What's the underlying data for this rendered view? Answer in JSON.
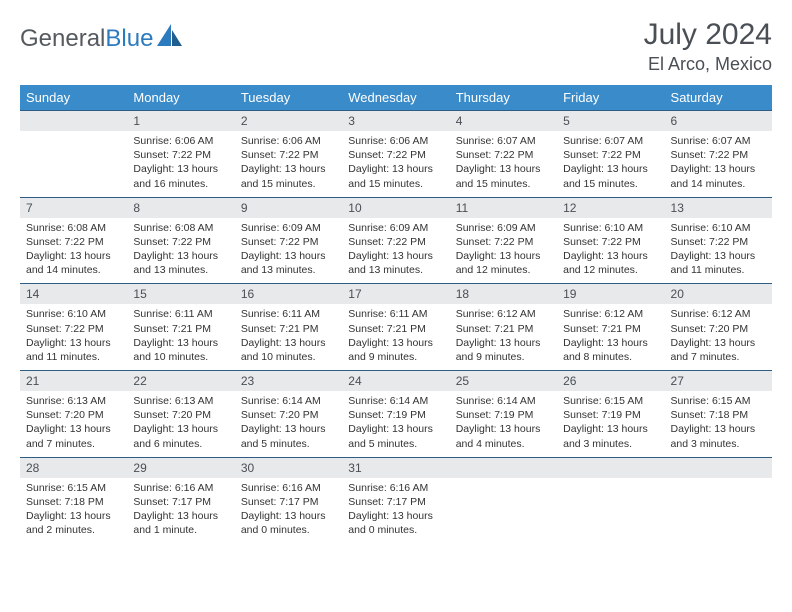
{
  "brand": {
    "part1": "General",
    "part2": "Blue"
  },
  "title": "July 2024",
  "location": "El Arco, Mexico",
  "colors": {
    "header_bg": "#3a8bc9",
    "header_text": "#ffffff",
    "daynum_bg": "#e7e9eb",
    "row_border": "#2e5c85",
    "body_text": "#333333",
    "title_text": "#4a4f55"
  },
  "weekdays": [
    "Sunday",
    "Monday",
    "Tuesday",
    "Wednesday",
    "Thursday",
    "Friday",
    "Saturday"
  ],
  "first_weekday_offset": 1,
  "days": [
    {
      "n": 1,
      "sr": "6:06 AM",
      "ss": "7:22 PM",
      "dl": "13 hours and 16 minutes."
    },
    {
      "n": 2,
      "sr": "6:06 AM",
      "ss": "7:22 PM",
      "dl": "13 hours and 15 minutes."
    },
    {
      "n": 3,
      "sr": "6:06 AM",
      "ss": "7:22 PM",
      "dl": "13 hours and 15 minutes."
    },
    {
      "n": 4,
      "sr": "6:07 AM",
      "ss": "7:22 PM",
      "dl": "13 hours and 15 minutes."
    },
    {
      "n": 5,
      "sr": "6:07 AM",
      "ss": "7:22 PM",
      "dl": "13 hours and 15 minutes."
    },
    {
      "n": 6,
      "sr": "6:07 AM",
      "ss": "7:22 PM",
      "dl": "13 hours and 14 minutes."
    },
    {
      "n": 7,
      "sr": "6:08 AM",
      "ss": "7:22 PM",
      "dl": "13 hours and 14 minutes."
    },
    {
      "n": 8,
      "sr": "6:08 AM",
      "ss": "7:22 PM",
      "dl": "13 hours and 13 minutes."
    },
    {
      "n": 9,
      "sr": "6:09 AM",
      "ss": "7:22 PM",
      "dl": "13 hours and 13 minutes."
    },
    {
      "n": 10,
      "sr": "6:09 AM",
      "ss": "7:22 PM",
      "dl": "13 hours and 13 minutes."
    },
    {
      "n": 11,
      "sr": "6:09 AM",
      "ss": "7:22 PM",
      "dl": "13 hours and 12 minutes."
    },
    {
      "n": 12,
      "sr": "6:10 AM",
      "ss": "7:22 PM",
      "dl": "13 hours and 12 minutes."
    },
    {
      "n": 13,
      "sr": "6:10 AM",
      "ss": "7:22 PM",
      "dl": "13 hours and 11 minutes."
    },
    {
      "n": 14,
      "sr": "6:10 AM",
      "ss": "7:22 PM",
      "dl": "13 hours and 11 minutes."
    },
    {
      "n": 15,
      "sr": "6:11 AM",
      "ss": "7:21 PM",
      "dl": "13 hours and 10 minutes."
    },
    {
      "n": 16,
      "sr": "6:11 AM",
      "ss": "7:21 PM",
      "dl": "13 hours and 10 minutes."
    },
    {
      "n": 17,
      "sr": "6:11 AM",
      "ss": "7:21 PM",
      "dl": "13 hours and 9 minutes."
    },
    {
      "n": 18,
      "sr": "6:12 AM",
      "ss": "7:21 PM",
      "dl": "13 hours and 9 minutes."
    },
    {
      "n": 19,
      "sr": "6:12 AM",
      "ss": "7:21 PM",
      "dl": "13 hours and 8 minutes."
    },
    {
      "n": 20,
      "sr": "6:12 AM",
      "ss": "7:20 PM",
      "dl": "13 hours and 7 minutes."
    },
    {
      "n": 21,
      "sr": "6:13 AM",
      "ss": "7:20 PM",
      "dl": "13 hours and 7 minutes."
    },
    {
      "n": 22,
      "sr": "6:13 AM",
      "ss": "7:20 PM",
      "dl": "13 hours and 6 minutes."
    },
    {
      "n": 23,
      "sr": "6:14 AM",
      "ss": "7:20 PM",
      "dl": "13 hours and 5 minutes."
    },
    {
      "n": 24,
      "sr": "6:14 AM",
      "ss": "7:19 PM",
      "dl": "13 hours and 5 minutes."
    },
    {
      "n": 25,
      "sr": "6:14 AM",
      "ss": "7:19 PM",
      "dl": "13 hours and 4 minutes."
    },
    {
      "n": 26,
      "sr": "6:15 AM",
      "ss": "7:19 PM",
      "dl": "13 hours and 3 minutes."
    },
    {
      "n": 27,
      "sr": "6:15 AM",
      "ss": "7:18 PM",
      "dl": "13 hours and 3 minutes."
    },
    {
      "n": 28,
      "sr": "6:15 AM",
      "ss": "7:18 PM",
      "dl": "13 hours and 2 minutes."
    },
    {
      "n": 29,
      "sr": "6:16 AM",
      "ss": "7:17 PM",
      "dl": "13 hours and 1 minute."
    },
    {
      "n": 30,
      "sr": "6:16 AM",
      "ss": "7:17 PM",
      "dl": "13 hours and 0 minutes."
    },
    {
      "n": 31,
      "sr": "6:16 AM",
      "ss": "7:17 PM",
      "dl": "13 hours and 0 minutes."
    }
  ],
  "labels": {
    "sunrise": "Sunrise:",
    "sunset": "Sunset:",
    "daylight": "Daylight:"
  }
}
